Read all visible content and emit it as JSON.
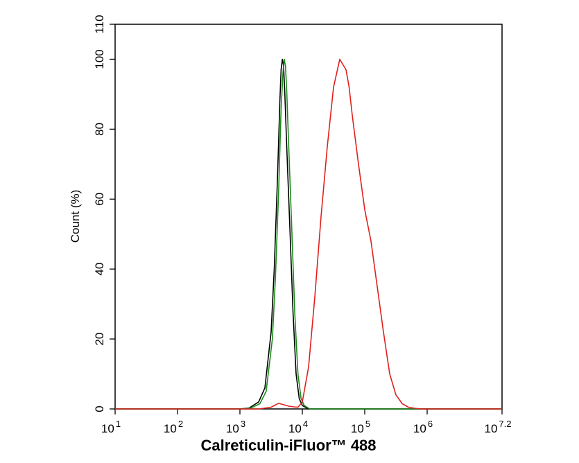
{
  "chart_data": {
    "type": "line",
    "title": "",
    "xlabel": "Calreticulin-iFluor™ 488",
    "ylabel": "Count  (%)",
    "x_scale": "log10",
    "xlim": [
      1,
      7.2
    ],
    "ylim": [
      0,
      110
    ],
    "x_ticks": [
      {
        "base": "10",
        "exp": "1",
        "value": 1
      },
      {
        "base": "10",
        "exp": "2",
        "value": 2
      },
      {
        "base": "10",
        "exp": "3",
        "value": 3
      },
      {
        "base": "10",
        "exp": "4",
        "value": 4
      },
      {
        "base": "10",
        "exp": "5",
        "value": 5
      },
      {
        "base": "10",
        "exp": "6",
        "value": 6
      },
      {
        "base": "10",
        "exp": "7.2",
        "value": 7.2
      }
    ],
    "y_ticks": [
      0,
      20,
      40,
      60,
      80,
      100,
      110
    ],
    "y_tick_labels": [
      "0",
      "20",
      "40",
      "60",
      "80",
      "100",
      "110"
    ],
    "legend": "none",
    "grid": false,
    "series": [
      {
        "color": "#000000",
        "x": [
          1,
          3.0,
          3.15,
          3.3,
          3.4,
          3.5,
          3.55,
          3.6,
          3.64,
          3.66,
          3.68,
          3.7,
          3.72,
          3.75,
          3.8,
          3.85,
          3.9,
          3.95,
          4.0,
          4.1,
          7.2
        ],
        "y": [
          0,
          0,
          0.3,
          2,
          6,
          22,
          40,
          65,
          88,
          97,
          100,
          98,
          90,
          75,
          52,
          28,
          10,
          3,
          1,
          0,
          0
        ]
      },
      {
        "color": "#1a8c1a",
        "x": [
          1,
          3.02,
          3.18,
          3.32,
          3.42,
          3.52,
          3.57,
          3.62,
          3.66,
          3.69,
          3.71,
          3.73,
          3.75,
          3.78,
          3.83,
          3.88,
          3.93,
          3.98,
          4.03,
          4.12,
          7.2
        ],
        "y": [
          0,
          0,
          0.3,
          1.5,
          5,
          20,
          38,
          62,
          86,
          96,
          100,
          98,
          91,
          76,
          52,
          27,
          10,
          3,
          1,
          0,
          0
        ]
      },
      {
        "color": "#e0201c",
        "x": [
          1,
          3.3,
          3.5,
          3.62,
          3.7,
          3.78,
          3.86,
          3.93,
          4.0,
          4.1,
          4.2,
          4.3,
          4.4,
          4.5,
          4.6,
          4.7,
          4.75,
          4.8,
          4.9,
          5.0,
          5.1,
          5.2,
          5.3,
          5.4,
          5.5,
          5.6,
          5.7,
          5.8,
          5.9,
          6.0,
          6.2,
          7.2
        ],
        "y": [
          0,
          0,
          0.5,
          1.6,
          1.2,
          0.8,
          0.6,
          0.5,
          2,
          12,
          32,
          55,
          75,
          92,
          100,
          97,
          92,
          84,
          70,
          57,
          48,
          35,
          22,
          10,
          4,
          1.5,
          0.5,
          0.2,
          0,
          0,
          0,
          0
        ]
      }
    ]
  }
}
